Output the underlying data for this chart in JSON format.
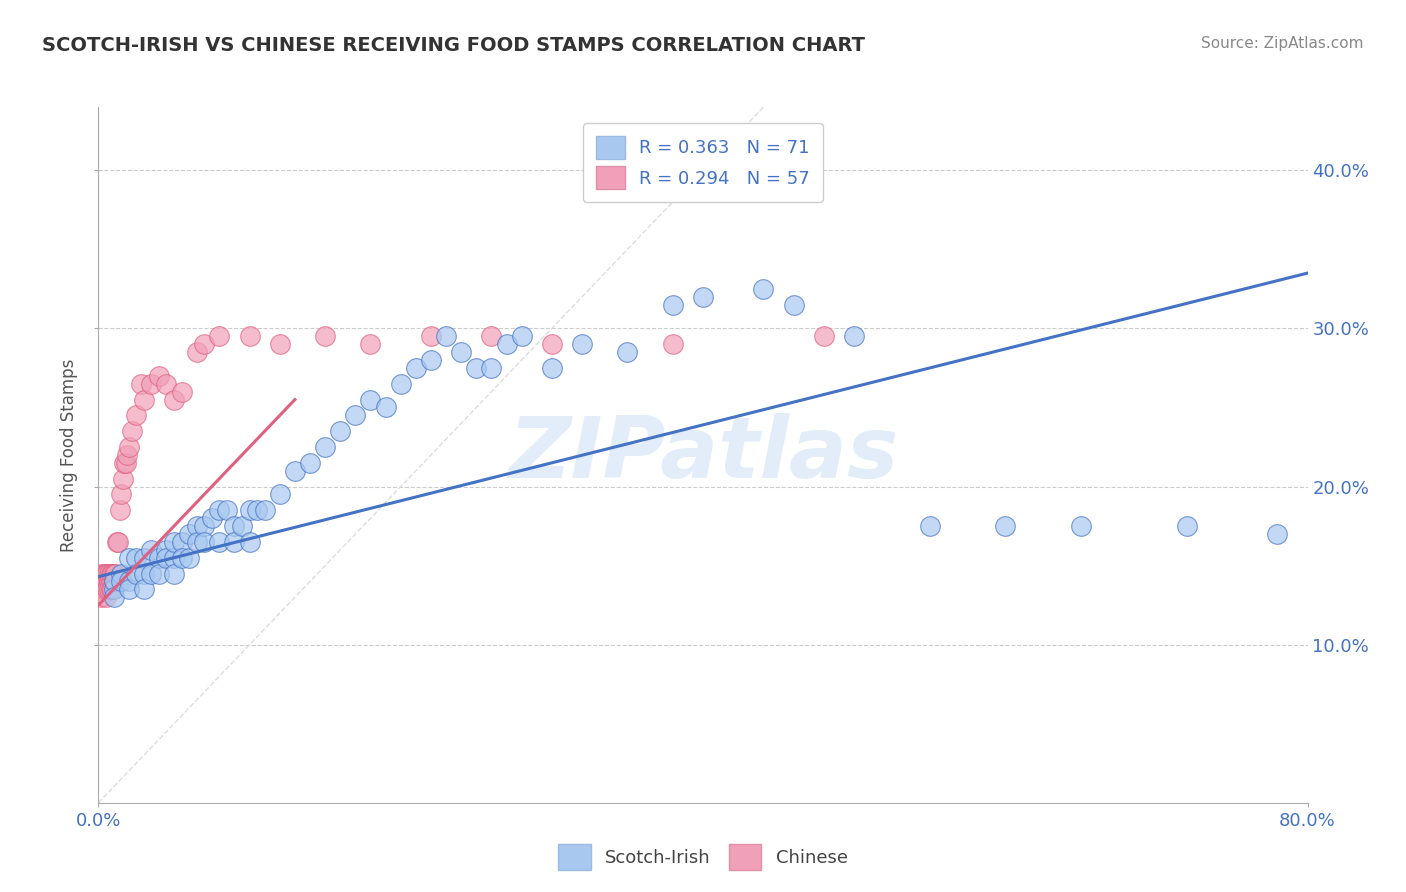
{
  "title": "SCOTCH-IRISH VS CHINESE RECEIVING FOOD STAMPS CORRELATION CHART",
  "source": "Source: ZipAtlas.com",
  "ylabel": "Receiving Food Stamps",
  "watermark": "ZIPatlas",
  "legend_r1": "0.363",
  "legend_n1": "71",
  "legend_r2": "0.294",
  "legend_n2": "57",
  "legend_label1": "Scotch-Irish",
  "legend_label2": "Chinese",
  "xlim": [
    0.0,
    0.8
  ],
  "ylim": [
    0.0,
    0.44
  ],
  "xtick_positions": [
    0.0,
    0.8
  ],
  "xtick_labels": [
    "0.0%",
    "80.0%"
  ],
  "ytick_positions": [
    0.1,
    0.2,
    0.3,
    0.4
  ],
  "ytick_labels": [
    "10.0%",
    "20.0%",
    "30.0%",
    "40.0%"
  ],
  "grid_yticks": [
    0.1,
    0.2,
    0.3,
    0.4
  ],
  "color_blue": "#A8C8F0",
  "color_pink": "#F0A0B8",
  "color_line_blue": "#4472C4",
  "color_line_pink": "#E06080",
  "color_grid": "#CCCCCC",
  "scotch_irish_x": [
    0.01,
    0.01,
    0.01,
    0.015,
    0.015,
    0.02,
    0.02,
    0.02,
    0.025,
    0.025,
    0.03,
    0.03,
    0.03,
    0.035,
    0.035,
    0.04,
    0.04,
    0.045,
    0.045,
    0.05,
    0.05,
    0.05,
    0.055,
    0.055,
    0.06,
    0.06,
    0.065,
    0.065,
    0.07,
    0.07,
    0.075,
    0.08,
    0.08,
    0.085,
    0.09,
    0.09,
    0.095,
    0.1,
    0.1,
    0.105,
    0.11,
    0.12,
    0.13,
    0.14,
    0.15,
    0.16,
    0.17,
    0.18,
    0.19,
    0.2,
    0.21,
    0.22,
    0.23,
    0.24,
    0.25,
    0.26,
    0.27,
    0.28,
    0.3,
    0.32,
    0.35,
    0.38,
    0.4,
    0.44,
    0.46,
    0.5,
    0.55,
    0.6,
    0.65,
    0.72,
    0.78
  ],
  "scotch_irish_y": [
    0.135,
    0.14,
    0.13,
    0.145,
    0.14,
    0.155,
    0.14,
    0.135,
    0.155,
    0.145,
    0.155,
    0.145,
    0.135,
    0.16,
    0.145,
    0.155,
    0.145,
    0.16,
    0.155,
    0.155,
    0.165,
    0.145,
    0.165,
    0.155,
    0.17,
    0.155,
    0.175,
    0.165,
    0.175,
    0.165,
    0.18,
    0.185,
    0.165,
    0.185,
    0.175,
    0.165,
    0.175,
    0.185,
    0.165,
    0.185,
    0.185,
    0.195,
    0.21,
    0.215,
    0.225,
    0.235,
    0.245,
    0.255,
    0.25,
    0.265,
    0.275,
    0.28,
    0.295,
    0.285,
    0.275,
    0.275,
    0.29,
    0.295,
    0.275,
    0.29,
    0.285,
    0.315,
    0.32,
    0.325,
    0.315,
    0.295,
    0.175,
    0.175,
    0.175,
    0.175,
    0.17
  ],
  "chinese_x": [
    0.002,
    0.002,
    0.002,
    0.003,
    0.003,
    0.003,
    0.004,
    0.004,
    0.004,
    0.005,
    0.005,
    0.005,
    0.005,
    0.006,
    0.006,
    0.006,
    0.007,
    0.007,
    0.007,
    0.008,
    0.008,
    0.008,
    0.009,
    0.009,
    0.01,
    0.01,
    0.011,
    0.012,
    0.013,
    0.014,
    0.015,
    0.016,
    0.017,
    0.018,
    0.019,
    0.02,
    0.022,
    0.025,
    0.028,
    0.03,
    0.035,
    0.04,
    0.045,
    0.05,
    0.055,
    0.065,
    0.07,
    0.08,
    0.1,
    0.12,
    0.15,
    0.18,
    0.22,
    0.26,
    0.3,
    0.38,
    0.48
  ],
  "chinese_y": [
    0.135,
    0.145,
    0.13,
    0.14,
    0.14,
    0.135,
    0.14,
    0.145,
    0.135,
    0.14,
    0.135,
    0.145,
    0.13,
    0.14,
    0.135,
    0.145,
    0.14,
    0.145,
    0.135,
    0.14,
    0.145,
    0.135,
    0.145,
    0.135,
    0.14,
    0.145,
    0.145,
    0.165,
    0.165,
    0.185,
    0.195,
    0.205,
    0.215,
    0.215,
    0.22,
    0.225,
    0.235,
    0.245,
    0.265,
    0.255,
    0.265,
    0.27,
    0.265,
    0.255,
    0.26,
    0.285,
    0.29,
    0.295,
    0.295,
    0.29,
    0.295,
    0.29,
    0.295,
    0.295,
    0.29,
    0.29,
    0.295
  ],
  "regression_blue_x0": 0.0,
  "regression_blue_y0": 0.143,
  "regression_blue_x1": 0.8,
  "regression_blue_y1": 0.335,
  "regression_pink_x0": 0.0,
  "regression_pink_y0": 0.125,
  "regression_pink_x1": 0.13,
  "regression_pink_y1": 0.255
}
